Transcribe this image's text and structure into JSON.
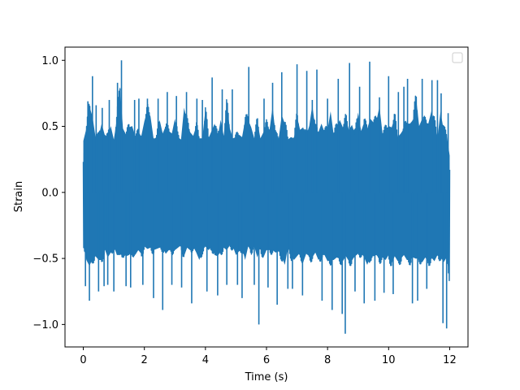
{
  "chart_data": {
    "type": "line",
    "title": "",
    "xlabel": "Time (s)",
    "ylabel": "Strain",
    "xlim": [
      -0.6,
      12.6
    ],
    "ylim": [
      -1.17,
      1.1
    ],
    "xticks": [
      0,
      2,
      4,
      6,
      8,
      10,
      12
    ],
    "xtick_labels": [
      "0",
      "2",
      "4",
      "6",
      "8",
      "10",
      "12"
    ],
    "yticks": [
      -1.0,
      -0.5,
      0.0,
      0.5,
      1.0
    ],
    "ytick_labels": [
      "−1.0",
      "−0.5",
      "0.0",
      "0.5",
      "1.0"
    ],
    "grid": false,
    "legend": {
      "placement": "upper-right",
      "entries": []
    },
    "series": [
      {
        "color": "#1f77b4",
        "x": [
          0.0,
          0.1,
          0.2,
          0.3,
          0.4,
          0.5,
          0.6,
          0.7,
          0.8,
          0.9,
          1.0,
          1.1,
          1.2,
          1.3,
          1.4,
          1.5,
          1.6,
          1.7,
          1.8,
          1.9,
          2.0,
          2.1,
          2.2,
          2.3,
          2.4,
          2.5,
          2.6,
          2.7,
          2.8,
          2.9,
          3.0,
          3.1,
          3.2,
          3.3,
          3.4,
          3.5,
          3.6,
          3.7,
          3.8,
          3.9,
          4.0,
          4.1,
          4.2,
          4.3,
          4.4,
          4.5,
          4.6,
          4.7,
          4.8,
          4.9,
          5.0,
          5.1,
          5.2,
          5.3,
          5.4,
          5.5,
          5.6,
          5.7,
          5.8,
          5.9,
          6.0,
          6.1,
          6.2,
          6.3,
          6.4,
          6.5,
          6.6,
          6.7,
          6.8,
          6.9,
          7.0,
          7.1,
          7.2,
          7.3,
          7.4,
          7.5,
          7.6,
          7.7,
          7.8,
          7.9,
          8.0,
          8.1,
          8.2,
          8.3,
          8.4,
          8.5,
          8.6,
          8.7,
          8.8,
          8.9,
          9.0,
          9.1,
          9.2,
          9.3,
          9.4,
          9.5,
          9.6,
          9.7,
          9.8,
          9.9,
          10.0,
          10.1,
          10.2,
          10.3,
          10.4,
          10.5,
          10.6,
          10.7,
          10.8,
          10.9,
          11.0,
          11.1,
          11.2,
          11.3,
          11.4,
          11.5,
          11.6,
          11.7,
          11.8,
          11.9,
          12.0
        ],
        "y_max": [
          0.42,
          0.52,
          0.7,
          0.62,
          0.45,
          0.45,
          0.56,
          0.47,
          0.45,
          0.54,
          0.43,
          0.6,
          0.86,
          0.52,
          0.47,
          0.53,
          0.54,
          0.46,
          0.48,
          0.46,
          0.58,
          0.67,
          0.62,
          0.44,
          0.44,
          0.59,
          0.48,
          0.54,
          0.5,
          0.48,
          0.6,
          0.45,
          0.43,
          0.69,
          0.57,
          0.49,
          0.46,
          0.54,
          0.44,
          0.44,
          0.68,
          0.44,
          0.5,
          0.56,
          0.45,
          0.59,
          0.46,
          0.72,
          0.52,
          0.44,
          0.45,
          0.47,
          0.45,
          0.59,
          0.59,
          0.53,
          0.44,
          0.58,
          0.44,
          0.49,
          0.55,
          0.51,
          0.7,
          0.46,
          0.44,
          0.63,
          0.56,
          0.43,
          0.45,
          0.44,
          0.62,
          0.51,
          0.53,
          0.46,
          0.54,
          0.71,
          0.52,
          0.49,
          0.56,
          0.49,
          0.51,
          0.66,
          0.47,
          0.53,
          0.59,
          0.53,
          0.6,
          0.51,
          0.55,
          0.47,
          0.65,
          0.5,
          0.57,
          0.52,
          0.6,
          0.57,
          0.58,
          0.7,
          0.48,
          0.51,
          0.54,
          0.53,
          0.61,
          0.45,
          0.48,
          0.52,
          0.56,
          0.56,
          0.59,
          0.77,
          0.54,
          0.6,
          0.57,
          0.56,
          0.66,
          0.57,
          0.44,
          0.66,
          0.51,
          0.47,
          0.3
        ],
        "y_min": [
          -0.4,
          -0.55,
          -0.6,
          -0.54,
          -0.52,
          -0.55,
          -0.55,
          -0.46,
          -0.53,
          -0.49,
          -0.44,
          -0.51,
          -0.51,
          -0.49,
          -0.52,
          -0.51,
          -0.48,
          -0.51,
          -0.47,
          -0.5,
          -0.44,
          -0.46,
          -0.45,
          -0.47,
          -0.46,
          -0.45,
          -0.45,
          -0.5,
          -0.47,
          -0.47,
          -0.47,
          -0.45,
          -0.43,
          -0.52,
          -0.45,
          -0.47,
          -0.44,
          -0.49,
          -0.55,
          -0.47,
          -0.44,
          -0.47,
          -0.44,
          -0.51,
          -0.52,
          -0.48,
          -0.45,
          -0.47,
          -0.43,
          -0.44,
          -0.51,
          -0.48,
          -0.45,
          -0.55,
          -0.44,
          -0.47,
          -0.44,
          -0.53,
          -0.44,
          -0.53,
          -0.47,
          -0.47,
          -0.47,
          -0.49,
          -0.48,
          -0.52,
          -0.59,
          -0.45,
          -0.51,
          -0.55,
          -0.52,
          -0.49,
          -0.57,
          -0.5,
          -0.52,
          -0.53,
          -0.49,
          -0.55,
          -0.51,
          -0.51,
          -0.56,
          -0.55,
          -0.55,
          -0.53,
          -0.54,
          -0.56,
          -0.52,
          -0.56,
          -0.55,
          -0.52,
          -0.5,
          -0.49,
          -0.53,
          -0.59,
          -0.52,
          -0.52,
          -0.51,
          -0.54,
          -0.53,
          -0.55,
          -0.51,
          -0.58,
          -0.52,
          -0.56,
          -0.54,
          -0.51,
          -0.55,
          -0.55,
          -0.53,
          -0.54,
          -0.53,
          -0.57,
          -0.53,
          -0.57,
          -0.53,
          -0.56,
          -0.51,
          -0.52,
          -0.57,
          -0.53,
          -0.69
        ],
        "spikes": [
          {
            "x": 0.07,
            "y": -0.71
          },
          {
            "x": 0.15,
            "y": 0.69
          },
          {
            "x": 0.2,
            "y": -0.82
          },
          {
            "x": 0.3,
            "y": 0.88
          },
          {
            "x": 0.42,
            "y": 0.66
          },
          {
            "x": 0.5,
            "y": -0.75
          },
          {
            "x": 0.62,
            "y": 0.64
          },
          {
            "x": 0.68,
            "y": -0.71
          },
          {
            "x": 0.8,
            "y": -0.7
          },
          {
            "x": 0.85,
            "y": 0.7
          },
          {
            "x": 1.0,
            "y": -0.75
          },
          {
            "x": 1.12,
            "y": 0.83
          },
          {
            "x": 1.25,
            "y": 1.0
          },
          {
            "x": 1.4,
            "y": -0.71
          },
          {
            "x": 1.55,
            "y": -0.72
          },
          {
            "x": 1.68,
            "y": 0.7
          },
          {
            "x": 1.82,
            "y": 0.71
          },
          {
            "x": 1.95,
            "y": -0.7
          },
          {
            "x": 2.1,
            "y": 0.71
          },
          {
            "x": 2.3,
            "y": -0.8
          },
          {
            "x": 2.45,
            "y": 0.71
          },
          {
            "x": 2.6,
            "y": -0.89
          },
          {
            "x": 2.75,
            "y": 0.76
          },
          {
            "x": 2.9,
            "y": -0.7
          },
          {
            "x": 3.05,
            "y": 0.73
          },
          {
            "x": 3.22,
            "y": -0.72
          },
          {
            "x": 3.38,
            "y": 0.76
          },
          {
            "x": 3.55,
            "y": -0.84
          },
          {
            "x": 3.72,
            "y": 0.71
          },
          {
            "x": 3.9,
            "y": 0.7
          },
          {
            "x": 4.05,
            "y": -0.75
          },
          {
            "x": 4.22,
            "y": 0.87
          },
          {
            "x": 4.4,
            "y": -0.78
          },
          {
            "x": 4.55,
            "y": 0.78
          },
          {
            "x": 4.7,
            "y": -0.7
          },
          {
            "x": 4.88,
            "y": 0.78
          },
          {
            "x": 5.05,
            "y": -0.7
          },
          {
            "x": 5.2,
            "y": -0.8
          },
          {
            "x": 5.42,
            "y": 0.95
          },
          {
            "x": 5.6,
            "y": -0.7
          },
          {
            "x": 5.75,
            "y": -1.0
          },
          {
            "x": 5.92,
            "y": 0.71
          },
          {
            "x": 6.05,
            "y": -0.72
          },
          {
            "x": 6.2,
            "y": 0.83
          },
          {
            "x": 6.35,
            "y": -0.85
          },
          {
            "x": 6.5,
            "y": 0.91
          },
          {
            "x": 6.7,
            "y": -0.73
          },
          {
            "x": 6.85,
            "y": -0.73
          },
          {
            "x": 7.0,
            "y": 0.97
          },
          {
            "x": 7.18,
            "y": -0.78
          },
          {
            "x": 7.32,
            "y": 0.92
          },
          {
            "x": 7.5,
            "y": 0.7
          },
          {
            "x": 7.65,
            "y": 0.93
          },
          {
            "x": 7.82,
            "y": -0.82
          },
          {
            "x": 8.0,
            "y": 0.71
          },
          {
            "x": 8.15,
            "y": -0.89
          },
          {
            "x": 8.35,
            "y": 0.86
          },
          {
            "x": 8.48,
            "y": -0.92
          },
          {
            "x": 8.58,
            "y": -1.07
          },
          {
            "x": 8.72,
            "y": 0.98
          },
          {
            "x": 8.9,
            "y": -0.75
          },
          {
            "x": 9.05,
            "y": 0.8
          },
          {
            "x": 9.2,
            "y": -0.84
          },
          {
            "x": 9.38,
            "y": 0.99
          },
          {
            "x": 9.55,
            "y": -0.82
          },
          {
            "x": 9.7,
            "y": 0.72
          },
          {
            "x": 9.85,
            "y": -0.76
          },
          {
            "x": 10.0,
            "y": 0.88
          },
          {
            "x": 10.15,
            "y": -0.77
          },
          {
            "x": 10.32,
            "y": 0.76
          },
          {
            "x": 10.5,
            "y": 0.8
          },
          {
            "x": 10.62,
            "y": 0.86
          },
          {
            "x": 10.78,
            "y": -0.84
          },
          {
            "x": 10.95,
            "y": -0.82
          },
          {
            "x": 11.1,
            "y": 0.86
          },
          {
            "x": 11.25,
            "y": -0.73
          },
          {
            "x": 11.42,
            "y": 0.85
          },
          {
            "x": 11.6,
            "y": 0.85
          },
          {
            "x": 11.72,
            "y": 0.75
          },
          {
            "x": 11.78,
            "y": -0.99
          },
          {
            "x": 11.9,
            "y": -1.03
          },
          {
            "x": 11.95,
            "y": 0.6
          }
        ]
      }
    ]
  }
}
